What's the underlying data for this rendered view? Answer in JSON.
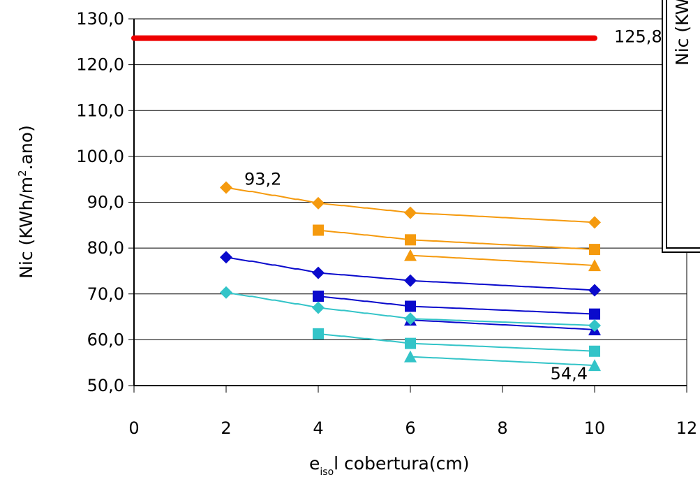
{
  "chart_data": {
    "type": "line",
    "title": "",
    "xlabel": {
      "main": "e",
      "sub": "iso",
      "rest": "l cobertura(cm)"
    },
    "ylabel": {
      "pre": "Nic (KWh/m",
      "sup": "2",
      "post": ".ano)"
    },
    "xlim": [
      0,
      12
    ],
    "ylim": [
      50,
      130
    ],
    "x_ticks": [
      "0",
      "2",
      "4",
      "6",
      "8",
      "10",
      "12"
    ],
    "y_ticks": [
      "50,0",
      "60,0",
      "70,0",
      "80,0",
      "90,0",
      "100,0",
      "110,0",
      "120,0",
      "130,0"
    ],
    "grid": "horizontal",
    "legend_box_text": "Nic (KW",
    "series": [
      {
        "color": "#ee0000",
        "marker": "none",
        "stroke_width": 8,
        "points": [
          [
            0,
            125.8
          ],
          [
            10,
            125.8
          ]
        ]
      },
      {
        "color": "#f59a0e",
        "marker": "diamond",
        "stroke_width": 2,
        "points": [
          [
            2,
            93.2
          ],
          [
            4,
            89.8
          ],
          [
            6,
            87.7
          ],
          [
            10,
            85.6
          ]
        ]
      },
      {
        "color": "#f59a0e",
        "marker": "square",
        "stroke_width": 2,
        "points": [
          [
            4,
            83.9
          ],
          [
            6,
            81.8
          ],
          [
            10,
            79.7
          ]
        ]
      },
      {
        "color": "#f59a0e",
        "marker": "triangle",
        "stroke_width": 2,
        "points": [
          [
            6,
            78.4
          ],
          [
            10,
            76.2
          ]
        ]
      },
      {
        "color": "#0a0acc",
        "marker": "diamond",
        "stroke_width": 2,
        "points": [
          [
            2,
            78.0
          ],
          [
            4,
            74.6
          ],
          [
            6,
            72.9
          ],
          [
            10,
            70.8
          ]
        ]
      },
      {
        "color": "#0a0acc",
        "marker": "square",
        "stroke_width": 2,
        "points": [
          [
            4,
            69.5
          ],
          [
            6,
            67.3
          ],
          [
            10,
            65.6
          ]
        ]
      },
      {
        "color": "#0a0acc",
        "marker": "triangle",
        "stroke_width": 2,
        "points": [
          [
            6,
            64.3
          ],
          [
            10,
            62.2
          ]
        ]
      },
      {
        "color": "#33c4c8",
        "marker": "diamond",
        "stroke_width": 2,
        "points": [
          [
            2,
            70.3
          ],
          [
            4,
            67.0
          ],
          [
            6,
            64.6
          ],
          [
            10,
            63.1
          ]
        ]
      },
      {
        "color": "#33c4c8",
        "marker": "square",
        "stroke_width": 2,
        "points": [
          [
            4,
            61.3
          ],
          [
            6,
            59.2
          ],
          [
            10,
            57.5
          ]
        ]
      },
      {
        "color": "#33c4c8",
        "marker": "triangle",
        "stroke_width": 2,
        "points": [
          [
            6,
            56.3
          ],
          [
            10,
            54.4
          ]
        ]
      }
    ],
    "annotations": [
      {
        "text": "125,8",
        "x": 10,
        "y": 125.8,
        "anchor": "right"
      },
      {
        "text": "93,2",
        "x": 2,
        "y": 93.2,
        "anchor": "upper-right"
      },
      {
        "text": "54,4",
        "x": 10,
        "y": 54.4,
        "anchor": "left"
      }
    ]
  }
}
